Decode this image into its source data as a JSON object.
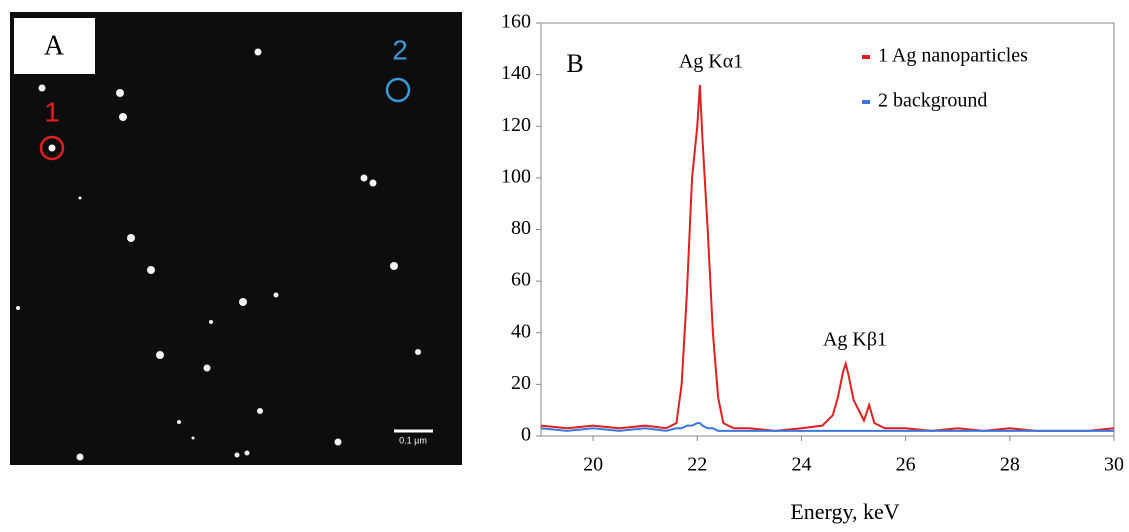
{
  "panel_a": {
    "label": "A",
    "markers": [
      {
        "label": "1"
      },
      {
        "label": "2"
      }
    ],
    "scale_bar": "0.1 µm"
  },
  "chart_data": {
    "type": "line",
    "panel_label": "B",
    "x_label": "Energy, keV",
    "annotations": [
      "Ag Kα1",
      "Ag Kβ1"
    ],
    "x": [
      19,
      19.5,
      20,
      20.5,
      21,
      21.4,
      21.6,
      21.7,
      21.8,
      21.9,
      22.0,
      22.05,
      22.1,
      22.2,
      22.3,
      22.4,
      22.5,
      22.7,
      23,
      23.5,
      24,
      24.4,
      24.6,
      24.7,
      24.8,
      24.85,
      24.9,
      25.0,
      25.2,
      25.3,
      25.4,
      25.6,
      26,
      26.5,
      27,
      27.5,
      28,
      28.5,
      29,
      29.5,
      30
    ],
    "series": [
      {
        "name": "1 Ag nanoparticles",
        "color": "#e02020",
        "values": [
          4,
          3,
          4,
          3,
          4,
          3,
          5,
          20,
          55,
          100,
          120,
          136,
          115,
          80,
          40,
          15,
          5,
          3,
          3,
          2,
          3,
          4,
          8,
          15,
          25,
          28,
          24,
          14,
          6,
          12,
          5,
          3,
          3,
          2,
          3,
          2,
          3,
          2,
          2,
          2,
          3
        ]
      },
      {
        "name": "2 background",
        "color": "#3a78e0",
        "values": [
          3,
          2,
          3,
          2,
          3,
          2,
          3,
          3,
          4,
          4,
          5,
          5,
          4,
          3,
          3,
          2,
          2,
          2,
          2,
          2,
          2,
          2,
          2,
          2,
          2,
          2,
          2,
          2,
          2,
          2,
          2,
          2,
          2,
          2,
          2,
          2,
          2,
          2,
          2,
          2,
          2
        ]
      }
    ],
    "xlim": [
      19,
      30
    ],
    "xticks": [
      20,
      22,
      24,
      26,
      28,
      30
    ],
    "ylim": [
      0,
      160
    ],
    "yticks": [
      0,
      20,
      40,
      60,
      80,
      100,
      120,
      140,
      160
    ],
    "legend": "upper right"
  }
}
